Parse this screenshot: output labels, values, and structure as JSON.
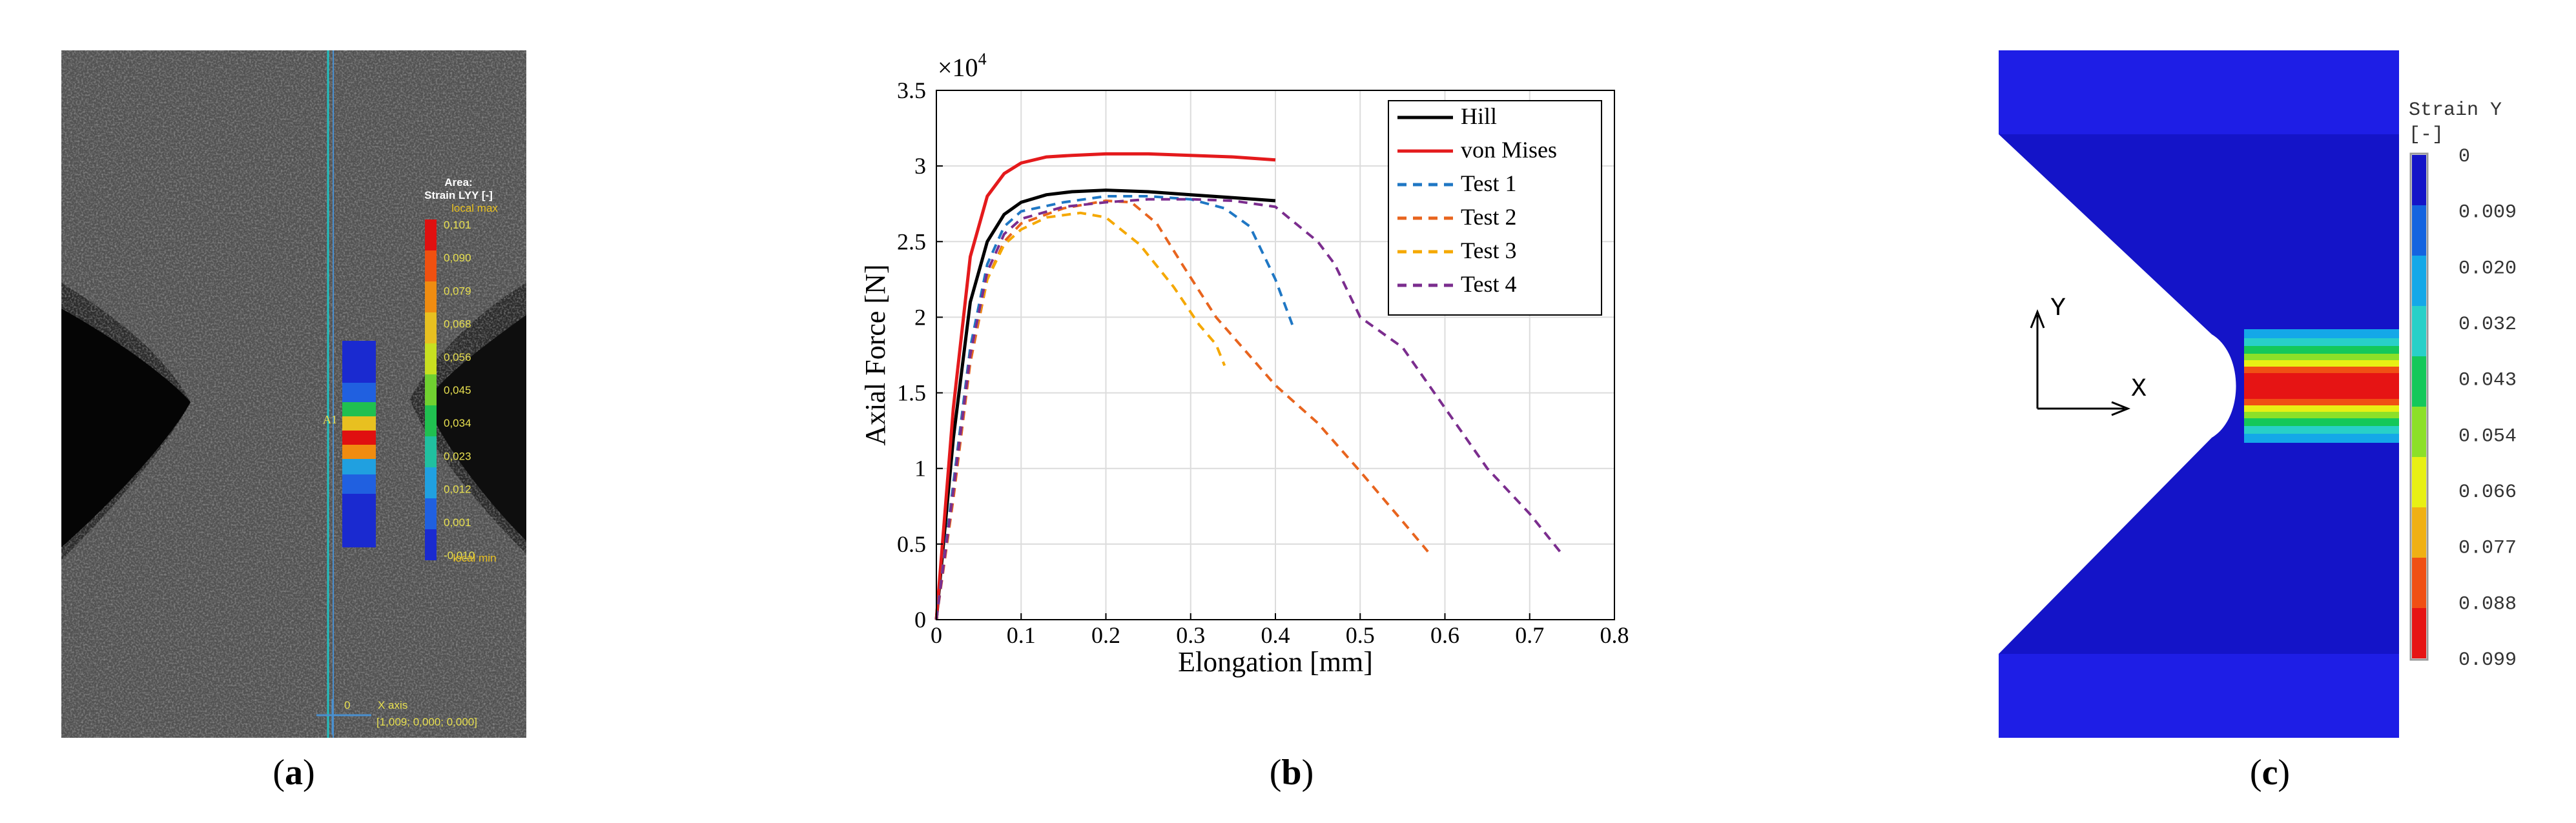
{
  "captions": {
    "a": {
      "open": "(",
      "letter": "a",
      "close": ")"
    },
    "b": {
      "open": "(",
      "letter": "b",
      "close": ")"
    },
    "c": {
      "open": "(",
      "letter": "c",
      "close": ")"
    }
  },
  "panel_a": {
    "legend_title_line1": "Area:",
    "legend_title_line2": "Strain LYY [-]",
    "local_max": "local max",
    "local_min": "local min",
    "values": [
      "0,101",
      "0,090",
      "0,079",
      "0,068",
      "0,056",
      "0,045",
      "0,034",
      "0,023",
      "0,012",
      "0,001",
      "-0,010"
    ],
    "colors": [
      "#e01010",
      "#f05010",
      "#f08c10",
      "#e8c020",
      "#c8e020",
      "#70d030",
      "#20c050",
      "#20c0a0",
      "#20a0e0",
      "#2060e0",
      "#1a2ad0"
    ],
    "area_label": "A1",
    "x_axis_label": "X axis",
    "x_axis_value": "0",
    "coordinates": "[1,009; 0,000; 0,000]"
  },
  "panel_c": {
    "legend_title": "Strain Y",
    "legend_unit": "[-]",
    "values": [
      "0",
      "0.009",
      "0.020",
      "0.032",
      "0.043",
      "0.054",
      "0.066",
      "0.077",
      "0.088",
      "0.099"
    ],
    "colors": [
      "#1414c8",
      "#1464e0",
      "#14a8e8",
      "#28d0c8",
      "#14c85a",
      "#8ce028",
      "#e8f014",
      "#f0b014",
      "#f05014",
      "#e61414"
    ],
    "axis_y": "Y",
    "axis_x": "X"
  },
  "chart_data": {
    "type": "line",
    "title": "",
    "xlabel": "Elongation [mm]",
    "ylabel": "Axial Force [N]",
    "y_multiplier": "×10",
    "y_multiplier_exp": "4",
    "xlim": [
      0,
      0.8
    ],
    "ylim": [
      0,
      3.5
    ],
    "xticks": [
      0,
      0.1,
      0.2,
      0.3,
      0.4,
      0.5,
      0.6,
      0.7,
      0.8
    ],
    "xtick_labels": [
      "0",
      "0.1",
      "0.2",
      "0.3",
      "0.4",
      "0.5",
      "0.6",
      "0.7",
      "0.8"
    ],
    "yticks": [
      0,
      0.5,
      1,
      1.5,
      2,
      2.5,
      3,
      3.5
    ],
    "ytick_labels": [
      "0",
      "0.5",
      "1",
      "1.5",
      "2",
      "2.5",
      "3",
      "3.5"
    ],
    "grid": true,
    "legend_position": "top-right",
    "series": [
      {
        "name": "Hill",
        "color": "#000000",
        "dash": "solid",
        "x": [
          0,
          0.02,
          0.04,
          0.06,
          0.08,
          0.1,
          0.13,
          0.16,
          0.2,
          0.25,
          0.3,
          0.35,
          0.4
        ],
        "y": [
          0,
          1.2,
          2.1,
          2.5,
          2.68,
          2.76,
          2.81,
          2.83,
          2.84,
          2.83,
          2.81,
          2.79,
          2.77
        ]
      },
      {
        "name": "von Mises",
        "color": "#e41a1c",
        "dash": "solid",
        "x": [
          0,
          0.02,
          0.04,
          0.06,
          0.08,
          0.1,
          0.13,
          0.16,
          0.2,
          0.25,
          0.3,
          0.35,
          0.4
        ],
        "y": [
          0,
          1.4,
          2.4,
          2.8,
          2.95,
          3.02,
          3.06,
          3.07,
          3.08,
          3.08,
          3.07,
          3.06,
          3.04
        ]
      },
      {
        "name": "Test 1",
        "color": "#1f77c4",
        "dash": "dashed",
        "x": [
          0,
          0.02,
          0.04,
          0.06,
          0.08,
          0.1,
          0.15,
          0.2,
          0.25,
          0.3,
          0.34,
          0.37,
          0.4,
          0.42
        ],
        "y": [
          0,
          0.9,
          1.8,
          2.35,
          2.6,
          2.7,
          2.76,
          2.8,
          2.8,
          2.78,
          2.72,
          2.6,
          2.25,
          1.95
        ]
      },
      {
        "name": "Test 2",
        "color": "#e8641e",
        "dash": "dashed",
        "x": [
          0,
          0.02,
          0.04,
          0.06,
          0.08,
          0.1,
          0.15,
          0.2,
          0.23,
          0.26,
          0.29,
          0.33,
          0.4,
          0.45,
          0.5,
          0.55,
          0.58
        ],
        "y": [
          0,
          0.8,
          1.7,
          2.25,
          2.5,
          2.62,
          2.72,
          2.77,
          2.76,
          2.62,
          2.35,
          2.0,
          1.55,
          1.3,
          0.98,
          0.65,
          0.45
        ]
      },
      {
        "name": "Test 3",
        "color": "#f5a800",
        "dash": "dashed",
        "x": [
          0,
          0.02,
          0.04,
          0.06,
          0.08,
          0.1,
          0.13,
          0.17,
          0.2,
          0.24,
          0.28,
          0.31,
          0.33,
          0.34
        ],
        "y": [
          0,
          0.85,
          1.75,
          2.25,
          2.48,
          2.58,
          2.66,
          2.69,
          2.66,
          2.48,
          2.2,
          1.95,
          1.82,
          1.68
        ]
      },
      {
        "name": "Test 4",
        "color": "#7b2d8e",
        "dash": "dashed",
        "x": [
          0,
          0.02,
          0.04,
          0.06,
          0.08,
          0.1,
          0.15,
          0.2,
          0.25,
          0.3,
          0.35,
          0.4,
          0.45,
          0.47,
          0.5,
          0.55,
          0.6,
          0.65,
          0.7,
          0.74
        ],
        "y": [
          0,
          0.85,
          1.75,
          2.3,
          2.55,
          2.65,
          2.73,
          2.76,
          2.78,
          2.78,
          2.77,
          2.73,
          2.5,
          2.35,
          2.0,
          1.8,
          1.4,
          1.0,
          0.7,
          0.42
        ]
      }
    ]
  }
}
